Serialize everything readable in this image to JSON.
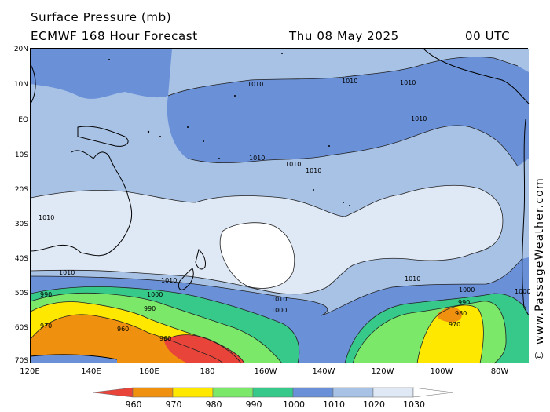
{
  "header": {
    "title": "Surface Pressure (mb)",
    "model": "ECMWF 168 Hour Forecast",
    "date": "Thu 08 May 2025",
    "time": "00 UTC"
  },
  "credit": "© www.PassageWeather.com",
  "map": {
    "lat_labels": [
      "20N",
      "10N",
      "EQ",
      "10S",
      "20S",
      "30S",
      "40S",
      "50S",
      "60S",
      "70S"
    ],
    "lon_labels": [
      "120E",
      "140E",
      "160E",
      "180",
      "160W",
      "140W",
      "120W",
      "100W",
      "80W"
    ],
    "units": "mb",
    "contour_interval_mb": 10,
    "isobar_labels": [
      "1010",
      "1010",
      "1010",
      "1010",
      "1010",
      "1010",
      "1010",
      "1010",
      "1010",
      "1010",
      "1010",
      "1010",
      "1000",
      "1000",
      "1000",
      "1000",
      "990",
      "990",
      "990",
      "980",
      "970",
      "970",
      "960",
      "960"
    ],
    "colors": {
      "below_960": "#e8443a",
      "960_970": "#f0900f",
      "970_980": "#ffe800",
      "980_990": "#7be86a",
      "990_1000": "#37c98a",
      "1000_1010": "#6a91d8",
      "1010_1020": "#a8c2e6",
      "1020_1030": "#dfe8f5",
      "above_1030": "#ffffff"
    }
  },
  "legend": {
    "labels": [
      "960",
      "970",
      "980",
      "990",
      "1000",
      "1010",
      "1020",
      "1030"
    ],
    "colors": [
      "#e8443a",
      "#f0900f",
      "#ffe800",
      "#7be86a",
      "#37c98a",
      "#6a91d8",
      "#a8c2e6",
      "#dfe8f5",
      "#ffffff"
    ]
  }
}
